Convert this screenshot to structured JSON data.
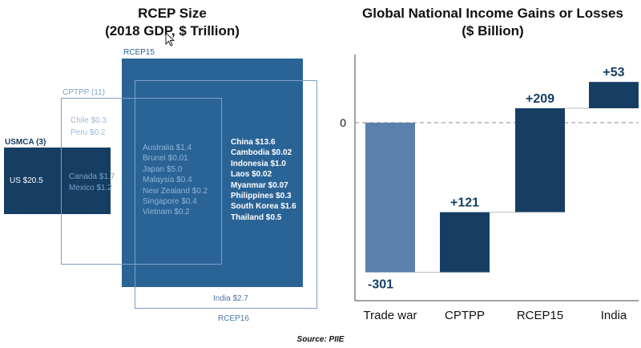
{
  "left_panel": {
    "title_line1": "RCEP Size",
    "title_line2": "(2018 GDP, $ Trillion)",
    "groups": {
      "usmca": {
        "label": "USMCA (3)",
        "members": [
          "US $20.5"
        ]
      },
      "cptpp": {
        "label": "CPTPP (11)",
        "members_top": [
          "Chile $0.3",
          "Peru $0.2"
        ],
        "members_mid": [
          "Canada $1.7",
          "Mexico $1.2"
        ]
      },
      "rcep15": {
        "label": "RCEP15",
        "overlap_members": [
          "Australia $1.4",
          "Brunei $0.01",
          "Japan $5.0",
          "Malaysia $0.4",
          "New Zealand $0.2",
          "Singapore $0.4",
          "Vietnam $0.2"
        ],
        "members": [
          "China $13.6",
          "Cambodia $0.02",
          "Indonesia $1.0",
          "Laos $0.02",
          "Myanmar $0.07",
          "Philippines $0.3",
          "South Korea $1.6",
          "Thailand $0.5"
        ]
      },
      "rcep16": {
        "label": "RCEP16",
        "members": [
          "India $2.7"
        ]
      }
    },
    "colors": {
      "usmca": "#163e63",
      "rcep15": "#2a6496",
      "outline": "#7c9fc7",
      "overlap_text": "#8fb3d9"
    }
  },
  "chart_data": {
    "type": "bar",
    "title_line1": "Global National Income Gains or Losses",
    "title_line2": "($ Billion)",
    "categories": [
      "Trade war",
      "CPTPP",
      "RCEP15",
      "India"
    ],
    "values": [
      -301,
      121,
      209,
      53
    ],
    "value_labels": [
      "-301",
      "+121",
      "+209",
      "+53"
    ],
    "zero_label": "0",
    "colors": [
      "#5b80ad",
      "#163e63",
      "#163e63",
      "#163e63"
    ]
  },
  "source": "Source: PIIE"
}
